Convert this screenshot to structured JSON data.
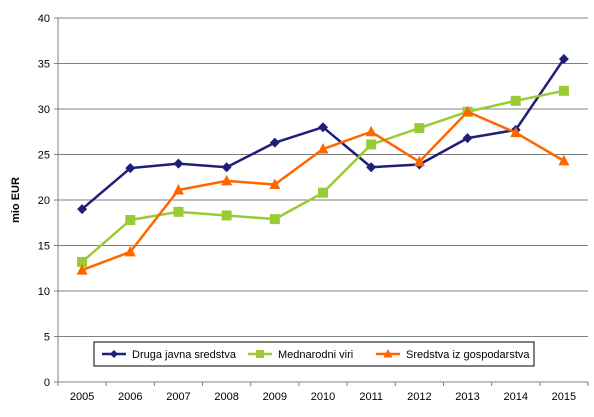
{
  "chart_data": {
    "type": "line",
    "ylabel": "mio EUR",
    "xlabel": "",
    "ylim": [
      0,
      40
    ],
    "y_ticks": [
      "0",
      "5",
      "10",
      "15",
      "20",
      "25",
      "30",
      "35",
      "40"
    ],
    "categories": [
      "2005",
      "2006",
      "2007",
      "2008",
      "2009",
      "2010",
      "2011",
      "2012",
      "2013",
      "2014",
      "2015"
    ],
    "grid": "horizontal",
    "legend_position": "bottom-center",
    "series": [
      {
        "name": "Druga javna sredstva",
        "color": "#1f1f7a",
        "marker": "diamond",
        "values": [
          19.0,
          23.5,
          24.0,
          23.6,
          26.3,
          28.0,
          23.6,
          23.9,
          26.8,
          27.7,
          35.5
        ]
      },
      {
        "name": "Mednarodni viri",
        "color": "#99cc33",
        "marker": "square",
        "values": [
          13.2,
          17.8,
          18.7,
          18.3,
          17.9,
          20.8,
          26.1,
          27.9,
          29.7,
          30.9,
          32.0
        ]
      },
      {
        "name": "Sredstva iz gospodarstva",
        "color": "#ff6600",
        "marker": "triangle",
        "values": [
          12.3,
          14.3,
          21.1,
          22.1,
          21.7,
          25.6,
          27.5,
          24.2,
          29.7,
          27.4,
          24.3
        ]
      }
    ]
  }
}
